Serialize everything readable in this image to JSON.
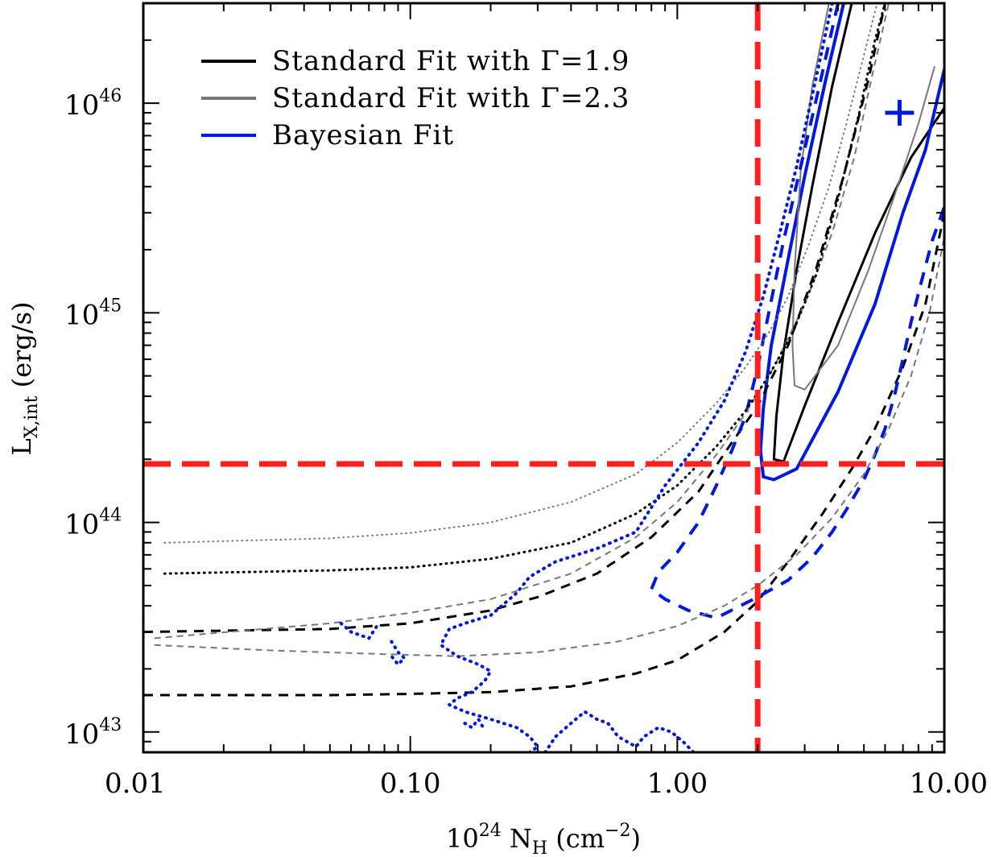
{
  "chart_data": {
    "type": "line",
    "xlabel": {
      "base": "10",
      "exp": "24",
      "main": " N",
      "sub": "H",
      "unit_open": " (cm",
      "unit_exp": "−2",
      "unit_close": ")"
    },
    "ylabel": {
      "main": "L",
      "sub": "X,int",
      "unit": "  (erg/s)"
    },
    "xscale": "log",
    "yscale": "log",
    "xlim": [
      0.01,
      10.0
    ],
    "ylim": [
      8e+42,
      3e+46
    ],
    "xticks": [
      {
        "value": 0.01,
        "label": "0.01"
      },
      {
        "value": 0.1,
        "label": "0.10"
      },
      {
        "value": 1.0,
        "label": "1.00"
      },
      {
        "value": 10.0,
        "label": "10.00"
      }
    ],
    "yticks": [
      {
        "value": 1e+43,
        "base": "10",
        "exp": "43"
      },
      {
        "value": 1e+44,
        "base": "10",
        "exp": "44"
      },
      {
        "value": 1e+45,
        "base": "10",
        "exp": "45"
      },
      {
        "value": 1e+46,
        "base": "10",
        "exp": "46"
      }
    ],
    "legend": {
      "position": "top-left",
      "entries": [
        {
          "label": "Standard Fit with Γ=1.9",
          "color": "#000000"
        },
        {
          "label": "Standard Fit with Γ=2.3",
          "color": "#777777"
        },
        {
          "label": "Bayesian Fit",
          "color": "#0018e0"
        }
      ]
    },
    "reference_lines": {
      "color": "#ff1f1f",
      "vertical_x": 2.0,
      "horizontal_y": 1.9e+44
    },
    "best_fit_marker": {
      "x": 6.8,
      "y": 9e+45,
      "color": "#0018e0"
    },
    "series": [
      {
        "style": "solid",
        "color": "#000000",
        "width": 3,
        "points": [
          [
            4.5,
            3e+46
          ],
          [
            3.8,
            1.2e+46
          ],
          [
            3.2,
            4e+45
          ],
          [
            2.8,
            1.6e+45
          ],
          [
            2.5,
            6.5e+44
          ],
          [
            2.35,
            3.2e+44
          ],
          [
            2.3,
            2e+44
          ],
          [
            2.5,
            1.95e+44
          ],
          [
            3.0,
            3.6e+44
          ],
          [
            4.0,
            9e+44
          ],
          [
            5.5,
            2.4e+45
          ],
          [
            7.5,
            5.5e+45
          ],
          [
            10.0,
            9.5e+45
          ]
        ]
      },
      {
        "style": "solid",
        "color": "#0018e0",
        "width": 4,
        "points": [
          [
            4.2,
            3e+46
          ],
          [
            3.6,
            1.3e+46
          ],
          [
            3.0,
            4.5e+45
          ],
          [
            2.6,
            1.8e+45
          ],
          [
            2.25,
            7e+44
          ],
          [
            2.1,
            3.5e+44
          ],
          [
            2.05,
            2.2e+44
          ],
          [
            2.1,
            1.65e+44
          ],
          [
            2.3,
            1.6e+44
          ],
          [
            2.8,
            1.8e+44
          ],
          [
            4.0,
            4.2e+44
          ],
          [
            5.5,
            1.1e+45
          ],
          [
            7.0,
            3e+45
          ],
          [
            8.5,
            6e+45
          ],
          [
            10.0,
            1.45e+46
          ]
        ]
      },
      {
        "style": "solid",
        "color": "#777777",
        "width": 2,
        "points": [
          [
            3.7,
            3e+46
          ],
          [
            3.2,
            1.2e+46
          ],
          [
            2.9,
            4.8e+45
          ],
          [
            2.75,
            1.6e+45
          ],
          [
            2.7,
            7e+44
          ],
          [
            2.75,
            4.5e+44
          ],
          [
            3.0,
            4.3e+44
          ],
          [
            4.0,
            7e+44
          ],
          [
            5.2,
            1.6e+45
          ],
          [
            6.5,
            3.6e+45
          ],
          [
            8.0,
            8e+45
          ],
          [
            9.2,
            1.5e+46
          ]
        ]
      },
      {
        "style": "dashed",
        "color": "#000000",
        "width": 3,
        "points": [
          [
            0.01,
            3e+43
          ],
          [
            0.05,
            3.1e+43
          ],
          [
            0.1,
            3.3e+43
          ],
          [
            0.2,
            3.8e+43
          ],
          [
            0.3,
            4.4e+43
          ],
          [
            0.5,
            5.7e+43
          ],
          [
            0.8,
            8.5e+43
          ],
          [
            1.2,
            1.4e+44
          ],
          [
            1.6,
            2.4e+44
          ],
          [
            2.0,
            3.6e+44
          ],
          [
            2.6,
            7e+44
          ],
          [
            3.3,
            1.6e+45
          ],
          [
            4.2,
            4.5e+45
          ],
          [
            5.2,
            1.3e+46
          ],
          [
            6.0,
            3e+46
          ]
        ]
      },
      {
        "style": "dashed",
        "color": "#000000",
        "width": 3,
        "points": [
          [
            0.01,
            1.5e+43
          ],
          [
            0.05,
            1.5e+43
          ],
          [
            0.1,
            1.52e+43
          ],
          [
            0.2,
            1.55e+43
          ],
          [
            0.4,
            1.65e+43
          ],
          [
            0.7,
            1.9e+43
          ],
          [
            1.0,
            2.2e+43
          ],
          [
            1.5,
            3e+43
          ],
          [
            2.0,
            4.2e+43
          ],
          [
            2.6,
            6.5e+43
          ],
          [
            3.5,
            1.1e+44
          ],
          [
            4.5,
            1.8e+44
          ],
          [
            5.5,
            2.8e+44
          ],
          [
            7.0,
            5.5e+44
          ],
          [
            8.5,
            1.1e+45
          ],
          [
            10.0,
            3e+45
          ]
        ]
      },
      {
        "style": "dashed",
        "color": "#0018e0",
        "width": 4,
        "points": [
          [
            4.0,
            3e+46
          ],
          [
            3.4,
            1.2e+46
          ],
          [
            2.9,
            5e+45
          ],
          [
            2.5,
            2.2e+45
          ],
          [
            2.2,
            1e+45
          ],
          [
            2.0,
            5.5e+44
          ],
          [
            1.8,
            3.2e+44
          ],
          [
            1.6,
            2.2e+44
          ],
          [
            1.4,
            1.5e+44
          ],
          [
            1.2,
            1e+44
          ],
          [
            1.0,
            7.2e+43
          ],
          [
            0.85,
            5.8e+43
          ],
          [
            0.8,
            4.8e+43
          ],
          [
            0.9,
            4.3e+43
          ],
          [
            1.1,
            3.8e+43
          ],
          [
            1.4,
            3.5e+43
          ],
          [
            2.0,
            4.4e+43
          ],
          [
            2.6,
            5.3e+43
          ],
          [
            3.2,
            6.8e+43
          ],
          [
            3.8,
            9e+43
          ],
          [
            4.3,
            1.15e+44
          ],
          [
            5.0,
            1.6e+44
          ],
          [
            5.5,
            2.1e+44
          ],
          [
            6.0,
            2.8e+44
          ],
          [
            6.5,
            4e+44
          ],
          [
            7.0,
            6e+44
          ],
          [
            7.5,
            9e+44
          ],
          [
            8.2,
            1.4e+45
          ],
          [
            9.0,
            2.2e+45
          ],
          [
            10.0,
            3.2e+45
          ]
        ]
      },
      {
        "style": "dashed",
        "color": "#777777",
        "width": 2,
        "points": [
          [
            0.011,
            2.8e+43
          ],
          [
            0.05,
            3.3e+43
          ],
          [
            0.1,
            3.7e+43
          ],
          [
            0.2,
            4.3e+43
          ],
          [
            0.4,
            5.7e+43
          ],
          [
            0.7,
            8.5e+43
          ],
          [
            1.0,
            1.25e+44
          ],
          [
            1.4,
            2.1e+44
          ],
          [
            1.8,
            3.3e+44
          ],
          [
            2.3,
            5.5e+44
          ],
          [
            3.0,
            1.1e+45
          ],
          [
            3.8,
            2.4e+45
          ],
          [
            4.6,
            5.5e+45
          ],
          [
            5.4,
            1.4e+46
          ],
          [
            6.2,
            3e+46
          ]
        ]
      },
      {
        "style": "dashed",
        "color": "#777777",
        "width": 2,
        "points": [
          [
            0.011,
            2.6e+43
          ],
          [
            0.03,
            2.45e+43
          ],
          [
            0.08,
            2.35e+43
          ],
          [
            0.15,
            2.3e+43
          ],
          [
            0.3,
            2.4e+43
          ],
          [
            0.6,
            2.7e+43
          ],
          [
            1.0,
            3.2e+43
          ],
          [
            1.5,
            4e+43
          ],
          [
            2.0,
            5e+43
          ],
          [
            2.8,
            7e+43
          ],
          [
            3.8,
            1.05e+44
          ],
          [
            5.0,
            1.7e+44
          ],
          [
            6.2,
            2.8e+44
          ],
          [
            7.5,
            5e+44
          ],
          [
            8.8,
            1e+45
          ],
          [
            10.0,
            2.3e+45
          ]
        ]
      },
      {
        "style": "dotted",
        "color": "#000000",
        "width": 3,
        "points": [
          [
            0.012,
            5.7e+43
          ],
          [
            0.05,
            5.9e+43
          ],
          [
            0.1,
            6.1e+43
          ],
          [
            0.2,
            6.7e+43
          ],
          [
            0.4,
            8e+43
          ],
          [
            0.7,
            1.1e+44
          ],
          [
            1.0,
            1.5e+44
          ],
          [
            1.4,
            2.3e+44
          ],
          [
            1.8,
            3.4e+44
          ],
          [
            2.2,
            5e+44
          ],
          [
            2.7,
            8e+44
          ],
          [
            3.3,
            1.5e+45
          ],
          [
            4.0,
            3.5e+45
          ],
          [
            4.8,
            9e+45
          ],
          [
            5.5,
            2e+46
          ],
          [
            6.0,
            3e+46
          ]
        ]
      },
      {
        "style": "dotted",
        "color": "#777777",
        "width": 2,
        "points": [
          [
            0.012,
            8e+43
          ],
          [
            0.05,
            8.4e+43
          ],
          [
            0.1,
            8.9e+43
          ],
          [
            0.2,
            1e+44
          ],
          [
            0.4,
            1.25e+44
          ],
          [
            0.7,
            1.7e+44
          ],
          [
            1.0,
            2.4e+44
          ],
          [
            1.4,
            3.7e+44
          ],
          [
            1.8,
            5.5e+44
          ],
          [
            2.2,
            8e+44
          ],
          [
            2.6,
            1.2e+45
          ],
          [
            3.1,
            2.1e+45
          ],
          [
            3.7,
            4e+45
          ],
          [
            4.3,
            8e+45
          ],
          [
            5.0,
            1.7e+46
          ],
          [
            5.6,
            3e+46
          ]
        ]
      },
      {
        "style": "dotted",
        "color": "#0018e0",
        "width": 4,
        "points": [
          [
            3.8,
            3e+46
          ],
          [
            3.3,
            1.3e+46
          ],
          [
            2.8,
            5e+45
          ],
          [
            2.4,
            2.3e+45
          ],
          [
            2.1,
            1.2e+45
          ],
          [
            1.8,
            6.5e+44
          ],
          [
            1.5,
            3.8e+44
          ],
          [
            1.2,
            2.4e+44
          ],
          [
            0.9,
            1.5e+44
          ],
          [
            0.7,
            9e+43
          ],
          [
            0.5,
            7.5e+43
          ],
          [
            0.35,
            6.5e+43
          ],
          [
            0.28,
            5.5e+43
          ],
          [
            0.25,
            4.6e+43
          ],
          [
            0.22,
            4e+43
          ],
          [
            0.2,
            3.6e+43
          ],
          [
            0.16,
            3.3e+43
          ],
          [
            0.14,
            3.1e+43
          ],
          [
            0.13,
            2.6e+43
          ],
          [
            0.15,
            2.3e+43
          ],
          [
            0.18,
            2.1e+43
          ],
          [
            0.2,
            1.95e+43
          ],
          [
            0.19,
            1.75e+43
          ],
          [
            0.17,
            1.55e+43
          ],
          [
            0.15,
            1.45e+43
          ],
          [
            0.14,
            1.35e+43
          ],
          [
            0.16,
            1.25e+43
          ],
          [
            0.2,
            1.15e+43
          ],
          [
            0.25,
            1.05e+43
          ],
          [
            0.28,
            9.5e+42
          ],
          [
            0.3,
            8.5e+42
          ],
          [
            0.28,
            8e+42
          ]
        ]
      },
      {
        "style": "dotted",
        "color": "#0018e0",
        "width": 4,
        "points": [
          [
            0.32,
            8e+42
          ],
          [
            0.35,
            9.5e+42
          ],
          [
            0.4,
            1.1e+43
          ],
          [
            0.45,
            1.25e+43
          ],
          [
            0.5,
            1.15e+43
          ],
          [
            0.55,
            1.1e+43
          ],
          [
            0.6,
            9.5e+42
          ],
          [
            0.7,
            8.5e+42
          ],
          [
            0.75,
            9.5e+42
          ],
          [
            0.85,
            1.05e+43
          ],
          [
            0.95,
            1e+43
          ],
          [
            1.05,
            9e+42
          ],
          [
            1.15,
            8e+42
          ]
        ]
      },
      {
        "style": "dotted",
        "color": "#0018e0",
        "width": 4,
        "points": [
          [
            0.055,
            3.3e+43
          ],
          [
            0.06,
            3e+43
          ],
          [
            0.07,
            2.8e+43
          ],
          [
            0.075,
            3.2e+43
          ]
        ]
      },
      {
        "style": "dotted",
        "color": "#0018e0",
        "width": 4,
        "points": [
          [
            0.085,
            2.7e+43
          ],
          [
            0.09,
            2.4e+43
          ],
          [
            0.095,
            2.25e+43
          ],
          [
            0.09,
            2.1e+43
          ],
          [
            0.085,
            2.3e+43
          ]
        ]
      },
      {
        "style": "dotted",
        "color": "#0018e0",
        "width": 4,
        "points": [
          [
            0.16,
            1.1e+43
          ],
          [
            0.17,
            1.05e+43
          ],
          [
            0.18,
            1.15e+43
          ],
          [
            0.19,
            1.02e+43
          ]
        ]
      }
    ]
  }
}
